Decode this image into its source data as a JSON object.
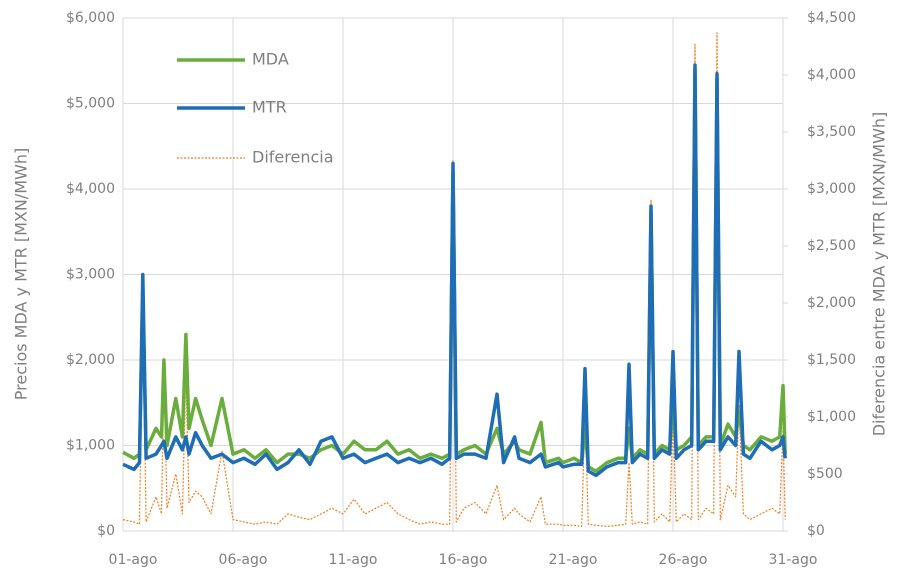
{
  "chart_data": {
    "type": "line",
    "y_label": "Precios MDA y MTR [MXN/MWh]",
    "y2_label": "Diferencia entre MDA y MTR [MXN/MWh]",
    "x": [
      1.0,
      1.5,
      1.75,
      1.9,
      2.05,
      2.5,
      2.75,
      2.86,
      3.0,
      3.4,
      3.7,
      3.86,
      4.0,
      4.3,
      4.6,
      5.0,
      5.5,
      6.0,
      6.5,
      7.0,
      7.5,
      8.0,
      8.5,
      9.0,
      9.5,
      10.0,
      10.5,
      11.0,
      11.5,
      12.0,
      12.5,
      13.0,
      13.5,
      14.0,
      14.5,
      15.0,
      15.5,
      15.85,
      16.0,
      16.15,
      16.5,
      17.0,
      17.5,
      18.0,
      18.3,
      18.8,
      19.0,
      19.5,
      20.0,
      20.2,
      20.8,
      21.0,
      21.5,
      21.85,
      22.0,
      22.15,
      22.5,
      23.0,
      23.5,
      23.85,
      24.0,
      24.15,
      24.5,
      24.85,
      25.0,
      25.15,
      25.5,
      25.85,
      26.0,
      26.15,
      26.5,
      26.85,
      27.0,
      27.15,
      27.5,
      27.85,
      28.0,
      28.15,
      28.5,
      28.85,
      29.0,
      29.2,
      29.5,
      30.0,
      30.5,
      30.85,
      31.0,
      31.1
    ],
    "series": [
      {
        "name": "MDA",
        "color": "#6aad3d",
        "axis": "y",
        "style": "solid",
        "values": [
          920,
          850,
          900,
          2700,
          950,
          1200,
          1100,
          2000,
          1000,
          1550,
          1100,
          2300,
          1200,
          1550,
          1300,
          1000,
          1550,
          900,
          950,
          850,
          950,
          800,
          900,
          900,
          850,
          950,
          1000,
          900,
          1050,
          950,
          950,
          1050,
          900,
          950,
          850,
          900,
          850,
          900,
          4200,
          900,
          950,
          1000,
          900,
          1200,
          900,
          1050,
          950,
          900,
          1270,
          800,
          850,
          800,
          850,
          800,
          1200,
          750,
          700,
          800,
          850,
          850,
          1200,
          850,
          950,
          900,
          3750,
          900,
          1000,
          950,
          1500,
          950,
          1000,
          1100,
          5400,
          1000,
          1100,
          1100,
          5300,
          1000,
          1250,
          1100,
          1400,
          1000,
          950,
          1100,
          1050,
          1100,
          1700,
          900
        ]
      },
      {
        "name": "MTR",
        "color": "#1f6db5",
        "axis": "y",
        "style": "solid",
        "values": [
          780,
          720,
          800,
          3000,
          850,
          900,
          1000,
          1050,
          850,
          1100,
          950,
          1100,
          900,
          1150,
          1000,
          850,
          900,
          800,
          850,
          780,
          900,
          720,
          800,
          950,
          780,
          1050,
          1100,
          850,
          900,
          800,
          850,
          900,
          800,
          850,
          800,
          850,
          780,
          850,
          4300,
          850,
          900,
          900,
          850,
          1600,
          800,
          1100,
          850,
          800,
          900,
          750,
          800,
          750,
          780,
          780,
          1900,
          700,
          650,
          750,
          800,
          800,
          1950,
          800,
          900,
          850,
          3800,
          850,
          950,
          900,
          2100,
          850,
          950,
          1000,
          5450,
          950,
          1050,
          1050,
          5350,
          950,
          1100,
          1000,
          2100,
          900,
          850,
          1050,
          950,
          1000,
          1100,
          850
        ]
      },
      {
        "name": "Diferencia",
        "color": "#f07f1e",
        "axis": "y2",
        "style": "dashed",
        "values": [
          100,
          80,
          60,
          2050,
          80,
          300,
          150,
          1400,
          200,
          500,
          150,
          1400,
          250,
          350,
          300,
          150,
          700,
          100,
          80,
          60,
          80,
          60,
          150,
          120,
          100,
          150,
          200,
          150,
          280,
          150,
          200,
          250,
          150,
          100,
          60,
          80,
          60,
          60,
          3250,
          80,
          200,
          250,
          150,
          400,
          100,
          200,
          150,
          80,
          300,
          60,
          60,
          50,
          50,
          40,
          1050,
          60,
          50,
          40,
          50,
          60,
          600,
          60,
          80,
          60,
          2900,
          80,
          150,
          80,
          1000,
          80,
          150,
          100,
          4270,
          100,
          200,
          150,
          4370,
          100,
          400,
          300,
          1100,
          150,
          100,
          150,
          200,
          150,
          900,
          100
        ]
      }
    ],
    "xlim": [
      1,
      31
    ],
    "xticks": [
      {
        "value": 1,
        "label": "01-ago"
      },
      {
        "value": 6,
        "label": "06-ago"
      },
      {
        "value": 11,
        "label": "11-ago"
      },
      {
        "value": 16,
        "label": "16-ago"
      },
      {
        "value": 21,
        "label": "21-ago"
      },
      {
        "value": 26,
        "label": "26-ago"
      },
      {
        "value": 31,
        "label": "31-ago"
      }
    ],
    "ylim": [
      0,
      6000
    ],
    "yticks": [
      {
        "value": 0,
        "label": "$0"
      },
      {
        "value": 1000,
        "label": "$1,000"
      },
      {
        "value": 2000,
        "label": "$2,000"
      },
      {
        "value": 3000,
        "label": "$3,000"
      },
      {
        "value": 4000,
        "label": "$4,000"
      },
      {
        "value": 5000,
        "label": "$5,000"
      },
      {
        "value": 6000,
        "label": "$6,000"
      }
    ],
    "y2lim": [
      0,
      4500
    ],
    "y2ticks": [
      {
        "value": 0,
        "label": "$0"
      },
      {
        "value": 500,
        "label": "$500"
      },
      {
        "value": 1000,
        "label": "$1,000"
      },
      {
        "value": 1500,
        "label": "$1,500"
      },
      {
        "value": 2000,
        "label": "$2,000"
      },
      {
        "value": 2500,
        "label": "$2,500"
      },
      {
        "value": 3000,
        "label": "$3,000"
      },
      {
        "value": 3500,
        "label": "$3,500"
      },
      {
        "value": 4000,
        "label": "$4,000"
      },
      {
        "value": 4500,
        "label": "$4,500"
      }
    ],
    "grid": true,
    "legend": "upper left"
  }
}
